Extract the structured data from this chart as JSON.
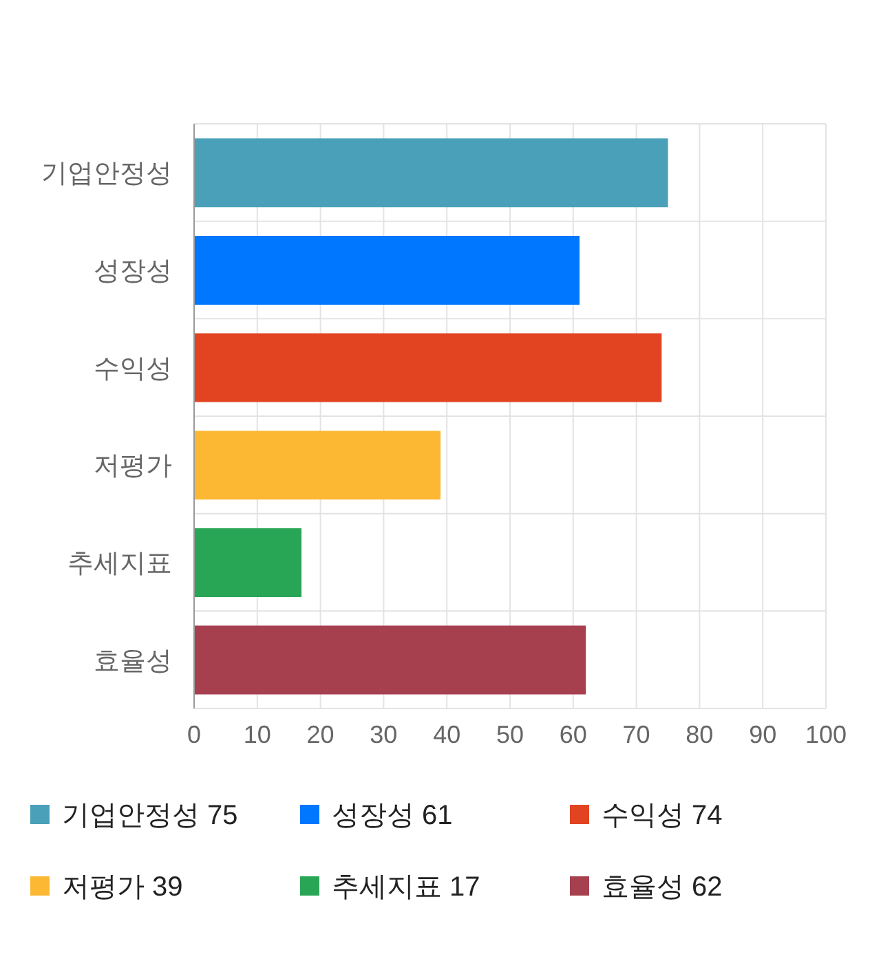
{
  "chart_data": {
    "type": "bar",
    "orientation": "horizontal",
    "stacked": true,
    "categories": [
      "기업안정성",
      "성장성",
      "수익성",
      "저평가",
      "추세지표",
      "효율성"
    ],
    "series": [
      {
        "name": "기업안정성 75",
        "color": "#4aa0b9",
        "values": [
          75,
          null,
          null,
          null,
          null,
          null
        ]
      },
      {
        "name": "성장성 61",
        "color": "#0077ff",
        "values": [
          null,
          61,
          null,
          null,
          null,
          null
        ]
      },
      {
        "name": "수익성 74",
        "color": "#e24422",
        "values": [
          null,
          null,
          74,
          null,
          null,
          null
        ]
      },
      {
        "name": "저평가 39",
        "color": "#fdb833",
        "values": [
          null,
          null,
          null,
          39,
          null,
          null
        ]
      },
      {
        "name": "추세지표 17",
        "color": "#29a655",
        "values": [
          null,
          null,
          null,
          null,
          17,
          null
        ]
      },
      {
        "name": "효율성 62",
        "color": "#a6404e",
        "values": [
          null,
          null,
          null,
          null,
          null,
          62
        ]
      }
    ],
    "xlim": [
      0,
      100
    ],
    "xticks": [
      0,
      10,
      20,
      30,
      40,
      50,
      60,
      70,
      80,
      90,
      100
    ],
    "grid": true,
    "legend": "bottom"
  }
}
